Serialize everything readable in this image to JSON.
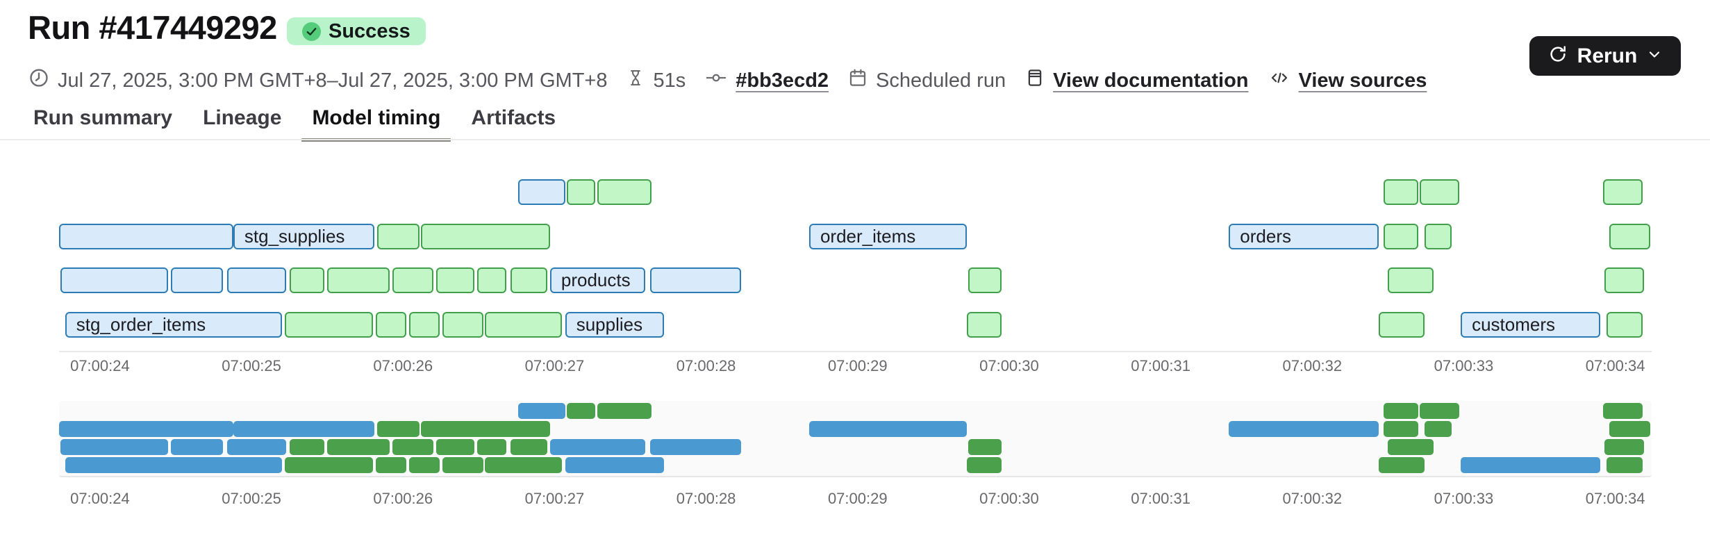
{
  "header": {
    "title": "Run #417449292",
    "status": "Success",
    "meta": {
      "date_range": "Jul 27, 2025, 3:00 PM GMT+8–Jul 27, 2025, 3:00 PM GMT+8",
      "duration": "51s",
      "commit": "#bb3ecd2",
      "trigger": "Scheduled run",
      "doc_link": "View documentation",
      "sources_link": "View sources"
    },
    "rerun_label": "Rerun"
  },
  "tabs": [
    {
      "label": "Run summary",
      "active": false
    },
    {
      "label": "Lineage",
      "active": false
    },
    {
      "label": "Model timing",
      "active": true
    },
    {
      "label": "Artifacts",
      "active": false
    }
  ],
  "icons": [
    "clock-icon",
    "hourglass-icon",
    "commit-icon",
    "calendar-icon",
    "docs-icon",
    "code-icon",
    "refresh-icon",
    "chevron-down-icon",
    "check-icon"
  ],
  "colors": {
    "success_badge_bg": "#b9f3c9",
    "success_dot": "#54cc7b",
    "bar_blue_fill": "#d9eafb",
    "bar_blue_border": "#2e7cb5",
    "bar_green_fill": "#c3f6c6",
    "bar_green_border": "#42a04c",
    "minimap_blue": "#4a9ad1",
    "minimap_green": "#4ba04b",
    "rerun_button_bg": "#1b1b1e"
  },
  "chart_data": {
    "type": "gantt",
    "title": "Model timing",
    "has_minimap": true,
    "x_axis": {
      "unit": "seconds offset from 07:00:24",
      "min": -0.27,
      "max": 10.24,
      "tick_values": [
        0,
        1,
        2,
        3,
        4,
        5,
        6,
        7,
        8,
        9,
        10
      ],
      "tick_labels": [
        "07:00:24",
        "07:00:25",
        "07:00:26",
        "07:00:27",
        "07:00:28",
        "07:00:29",
        "07:00:30",
        "07:00:31",
        "07:00:32",
        "07:00:33",
        "07:00:34"
      ]
    },
    "rows": [
      {
        "bars": [
          {
            "label": "",
            "color": "blue",
            "start": 2.76,
            "end": 3.07
          },
          {
            "label": "",
            "color": "green",
            "start": 3.08,
            "end": 3.27
          },
          {
            "label": "",
            "color": "green",
            "start": 3.28,
            "end": 3.64
          },
          {
            "label": "",
            "color": "green",
            "start": 8.47,
            "end": 8.7
          },
          {
            "label": "",
            "color": "green",
            "start": 8.71,
            "end": 8.97
          },
          {
            "label": "",
            "color": "green",
            "start": 9.92,
            "end": 10.18
          }
        ]
      },
      {
        "bars": [
          {
            "label": "",
            "color": "blue",
            "start": -0.27,
            "end": 0.88
          },
          {
            "label": "stg_supplies",
            "color": "blue",
            "start": 0.88,
            "end": 1.81
          },
          {
            "label": "",
            "color": "green",
            "start": 1.83,
            "end": 2.11
          },
          {
            "label": "",
            "color": "green",
            "start": 2.12,
            "end": 2.97
          },
          {
            "label": "order_items",
            "color": "blue",
            "start": 4.68,
            "end": 5.72
          },
          {
            "label": "orders",
            "color": "blue",
            "start": 7.45,
            "end": 8.44
          },
          {
            "label": "",
            "color": "green",
            "start": 8.47,
            "end": 8.7
          },
          {
            "label": "",
            "color": "green",
            "start": 8.74,
            "end": 8.92
          },
          {
            "label": "",
            "color": "green",
            "start": 9.96,
            "end": 10.23
          }
        ]
      },
      {
        "bars": [
          {
            "label": "",
            "color": "blue",
            "start": -0.26,
            "end": 0.45
          },
          {
            "label": "",
            "color": "blue",
            "start": 0.47,
            "end": 0.81
          },
          {
            "label": "",
            "color": "blue",
            "start": 0.84,
            "end": 1.23
          },
          {
            "label": "",
            "color": "green",
            "start": 1.25,
            "end": 1.48
          },
          {
            "label": "",
            "color": "green",
            "start": 1.5,
            "end": 1.91
          },
          {
            "label": "",
            "color": "green",
            "start": 1.93,
            "end": 2.2
          },
          {
            "label": "",
            "color": "green",
            "start": 2.22,
            "end": 2.47
          },
          {
            "label": "",
            "color": "green",
            "start": 2.49,
            "end": 2.68
          },
          {
            "label": "",
            "color": "green",
            "start": 2.71,
            "end": 2.95
          },
          {
            "label": "products",
            "color": "blue",
            "start": 2.97,
            "end": 3.6
          },
          {
            "label": "",
            "color": "blue",
            "start": 3.63,
            "end": 4.23
          },
          {
            "label": "",
            "color": "green",
            "start": 5.73,
            "end": 5.95
          },
          {
            "label": "",
            "color": "green",
            "start": 8.5,
            "end": 8.8
          },
          {
            "label": "",
            "color": "green",
            "start": 9.93,
            "end": 10.19
          }
        ]
      },
      {
        "bars": [
          {
            "label": "stg_order_items",
            "color": "blue",
            "start": -0.23,
            "end": 1.2
          },
          {
            "label": "",
            "color": "green",
            "start": 1.22,
            "end": 1.8
          },
          {
            "label": "",
            "color": "green",
            "start": 1.82,
            "end": 2.02
          },
          {
            "label": "",
            "color": "green",
            "start": 2.04,
            "end": 2.24
          },
          {
            "label": "",
            "color": "green",
            "start": 2.26,
            "end": 2.53
          },
          {
            "label": "",
            "color": "green",
            "start": 2.54,
            "end": 3.05
          },
          {
            "label": "supplies",
            "color": "blue",
            "start": 3.07,
            "end": 3.72
          },
          {
            "label": "",
            "color": "green",
            "start": 5.72,
            "end": 5.95
          },
          {
            "label": "",
            "color": "green",
            "start": 8.44,
            "end": 8.74
          },
          {
            "label": "customers",
            "color": "blue",
            "start": 8.98,
            "end": 9.9
          },
          {
            "label": "",
            "color": "green",
            "start": 9.94,
            "end": 10.18
          }
        ]
      }
    ]
  }
}
